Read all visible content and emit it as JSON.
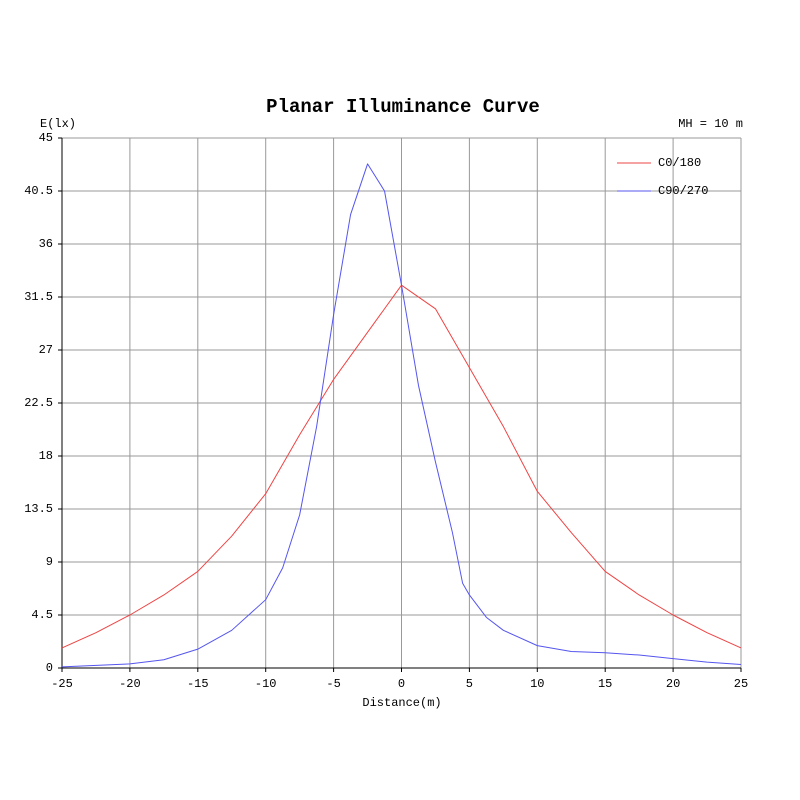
{
  "chart_data": {
    "type": "line",
    "title": "Planar Illuminance Curve",
    "y_label": "E(lx)",
    "x_label": "Distance(m)",
    "annotation": "MH = 10 m",
    "xlim": [
      -25,
      25
    ],
    "xticks": [
      -25,
      -20,
      -15,
      -10,
      -5,
      0,
      5,
      10,
      15,
      20,
      25
    ],
    "ylim": [
      0,
      45
    ],
    "yticks": [
      0,
      4.5,
      9,
      13.5,
      18,
      22.5,
      27,
      31.5,
      36,
      40.5,
      45
    ],
    "grid": true,
    "legend": "top-right",
    "series": [
      {
        "name": "C0/180",
        "color": "#ee4444",
        "x": [
          -25,
          -22.5,
          -20,
          -17.5,
          -15,
          -12.5,
          -10,
          -7.5,
          -5,
          -2.5,
          0,
          2.5,
          5,
          7.5,
          10,
          12.5,
          15,
          17.5,
          20,
          22.5,
          25
        ],
        "values": [
          1.7,
          3.0,
          4.5,
          6.2,
          8.2,
          11.2,
          14.8,
          19.8,
          24.5,
          28.5,
          32.5,
          30.5,
          25.5,
          20.5,
          15.0,
          11.5,
          8.2,
          6.2,
          4.5,
          3.0,
          1.7
        ]
      },
      {
        "name": "C90/270",
        "color": "#5555ee",
        "x": [
          -25,
          -20,
          -17.5,
          -15,
          -12.5,
          -10,
          -8.75,
          -7.5,
          -6.25,
          -5,
          -3.75,
          -2.5,
          -1.25,
          0,
          1.25,
          2.5,
          3.75,
          4.5,
          5,
          6.25,
          7.5,
          10,
          12.5,
          15,
          17.5,
          20,
          22.5,
          25
        ],
        "values": [
          0.1,
          0.35,
          0.7,
          1.6,
          3.2,
          5.8,
          8.5,
          13.0,
          20.5,
          30.0,
          38.5,
          42.8,
          40.5,
          32.5,
          24.0,
          17.5,
          11.5,
          7.2,
          6.2,
          4.3,
          3.2,
          1.9,
          1.4,
          1.3,
          1.1,
          0.8,
          0.5,
          0.3
        ]
      }
    ]
  }
}
